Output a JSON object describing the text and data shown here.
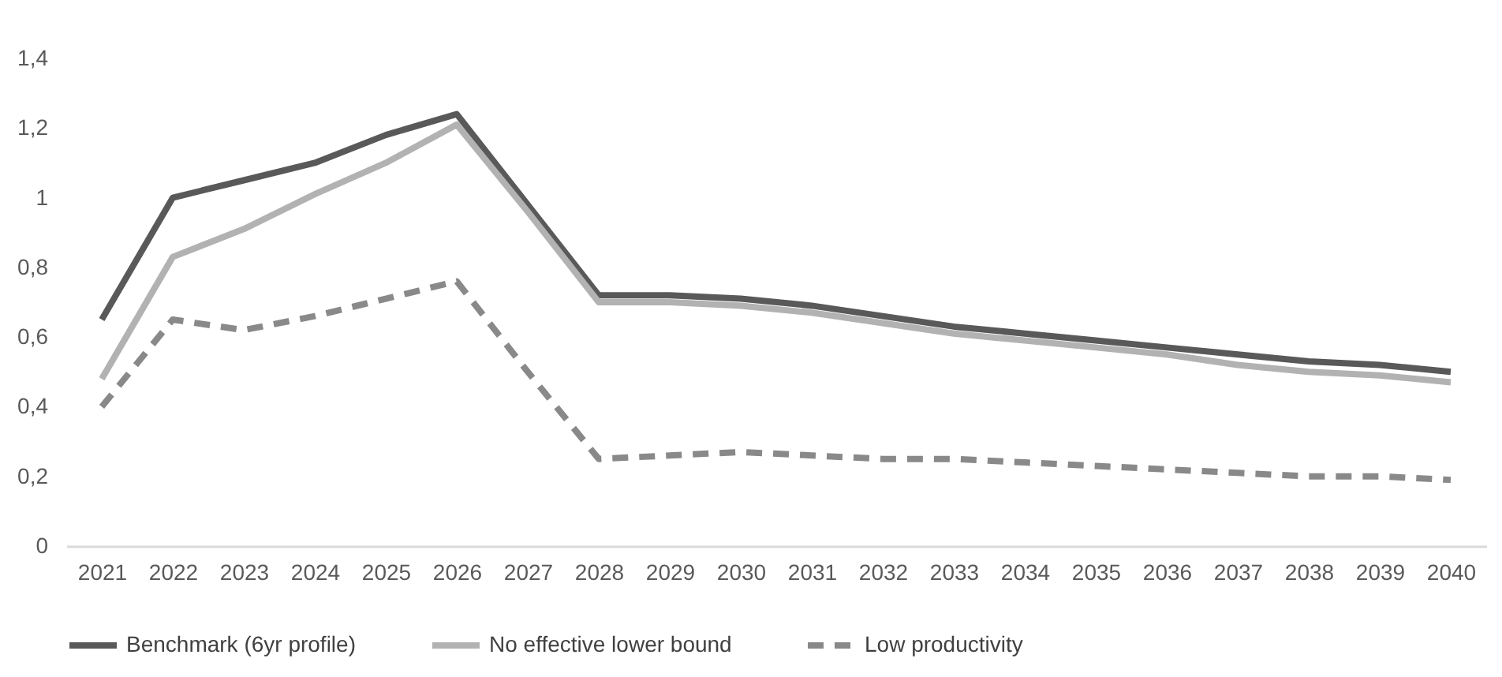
{
  "chart_data": {
    "type": "line",
    "categories": [
      "2021",
      "2022",
      "2023",
      "2024",
      "2025",
      "2026",
      "2027",
      "2028",
      "2029",
      "2030",
      "2031",
      "2032",
      "2033",
      "2034",
      "2035",
      "2036",
      "2037",
      "2038",
      "2039",
      "2040"
    ],
    "series": [
      {
        "name": "Benchmark (6yr profile)",
        "color": "#595959",
        "line_style": "solid",
        "values": [
          0.65,
          1.0,
          1.05,
          1.1,
          1.18,
          1.24,
          0.98,
          0.72,
          0.72,
          0.71,
          0.69,
          0.66,
          0.63,
          0.61,
          0.59,
          0.57,
          0.55,
          0.53,
          0.52,
          0.5
        ]
      },
      {
        "name": "No effective lower bound",
        "color": "#b2b2b2",
        "line_style": "solid",
        "values": [
          0.48,
          0.83,
          0.91,
          1.01,
          1.1,
          1.21,
          0.96,
          0.7,
          0.7,
          0.69,
          0.67,
          0.64,
          0.61,
          0.59,
          0.57,
          0.55,
          0.52,
          0.5,
          0.49,
          0.47
        ]
      },
      {
        "name": "Low productivity",
        "color": "#898989",
        "line_style": "dashed",
        "values": [
          0.4,
          0.65,
          0.62,
          0.66,
          0.71,
          0.76,
          0.5,
          0.25,
          0.26,
          0.27,
          0.26,
          0.25,
          0.25,
          0.24,
          0.23,
          0.22,
          0.21,
          0.2,
          0.2,
          0.19
        ]
      }
    ],
    "ylim": [
      0,
      1.4
    ],
    "yticks": [
      0,
      {
        "value": 0.2,
        "label": "0,2"
      },
      {
        "value": 0.4,
        "label": "0,4"
      },
      {
        "value": 0.6,
        "label": "0,6"
      },
      {
        "value": 0.8,
        "label": "0,8"
      },
      1,
      {
        "value": 1.2,
        "label": "1,2"
      },
      {
        "value": 1.4,
        "label": "1,4"
      }
    ],
    "grid": false,
    "legend": "bottom"
  }
}
